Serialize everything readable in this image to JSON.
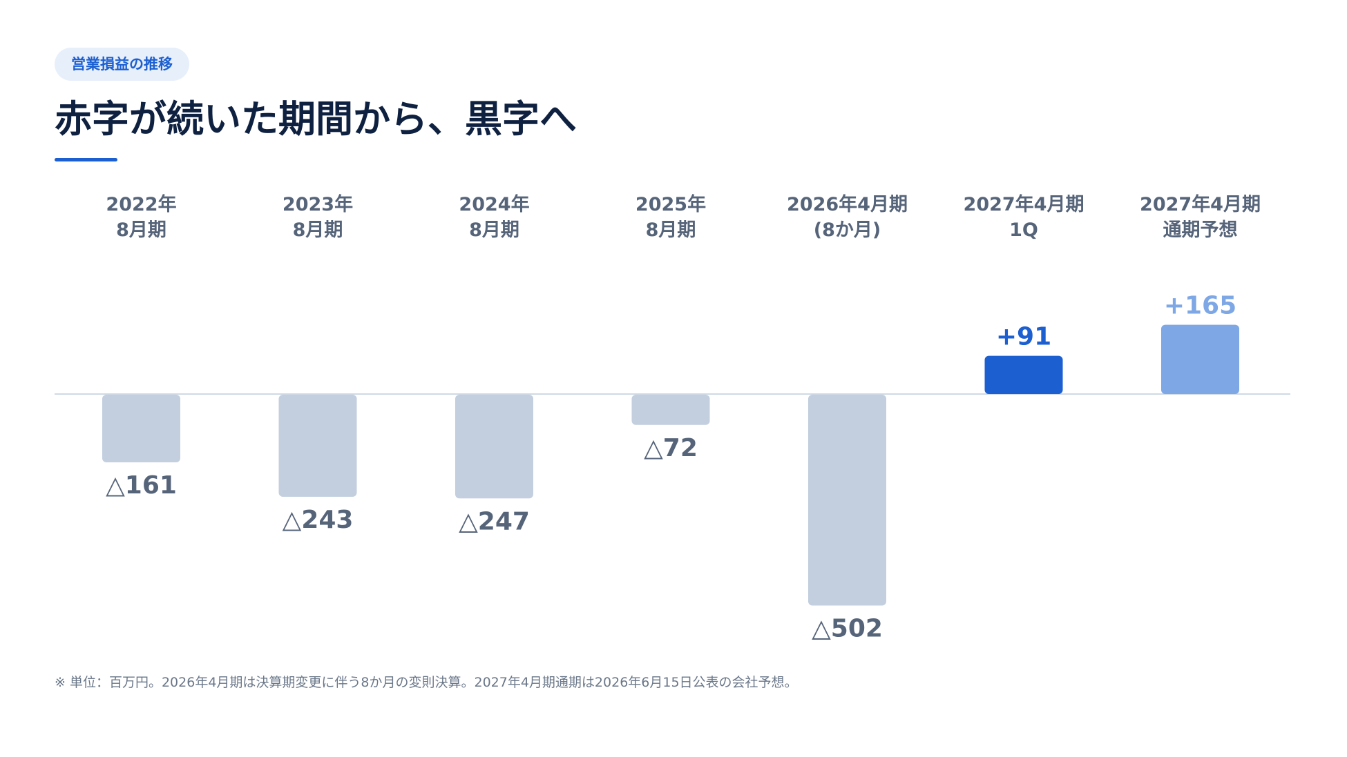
{
  "badge": "営業損益の推移",
  "title": "赤字が続いた期間から、黒字へ",
  "footnote": "※ 単位：百万円。2026年4月期は決算期変更に伴う8か月の変則決算。2027年4月期通期は2026年6月15日公表の会社予想。",
  "colors": {
    "negative": "#c3cfdf",
    "actual_positive": "#1c5fd0",
    "forecast_positive": "#7da7e5",
    "negative_label": "#56647a",
    "header_label": "#56647a",
    "baseline": "#cfd9e5"
  },
  "chart_data": {
    "type": "bar",
    "unit": "百万円",
    "categories": [
      [
        "2022年",
        "8月期"
      ],
      [
        "2023年",
        "8月期"
      ],
      [
        "2024年",
        "8月期"
      ],
      [
        "2025年",
        "8月期"
      ],
      [
        "2026年4月期",
        "(8か月)"
      ],
      [
        "2027年4月期",
        "1Q"
      ],
      [
        "2027年4月期",
        "通期予想"
      ]
    ],
    "values": [
      -161,
      -243,
      -247,
      -72,
      -502,
      91,
      165
    ],
    "value_labels": [
      "△161",
      "△243",
      "△247",
      "△72",
      "△502",
      "+91",
      "+165"
    ],
    "bar_kind": [
      "negative",
      "negative",
      "negative",
      "negative",
      "negative",
      "actual_positive",
      "forecast_positive"
    ]
  }
}
